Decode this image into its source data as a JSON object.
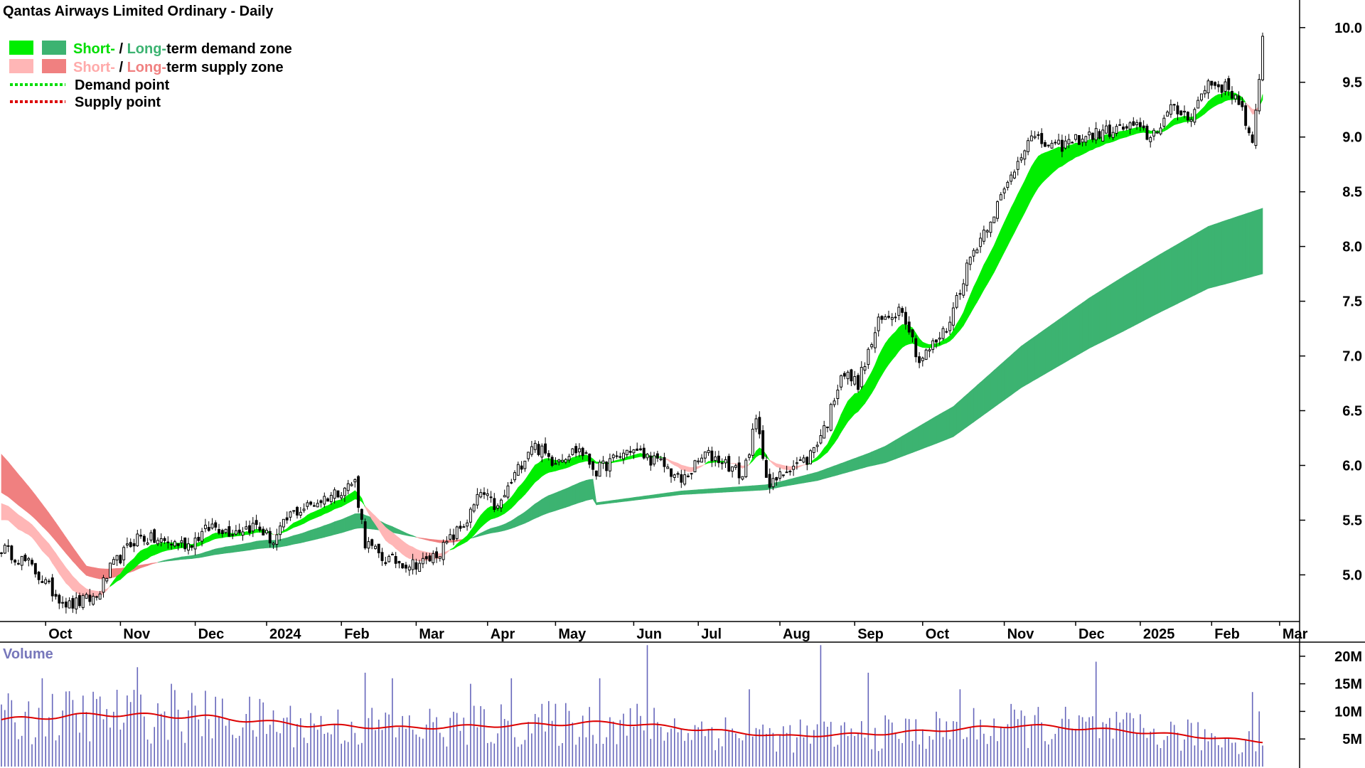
{
  "chart_data": {
    "type": "candlestick",
    "title": "Qantas Airways Limited Ordinary - Daily",
    "legend": {
      "zone_demand": {
        "short": "Short-",
        "sep": " / ",
        "long": "Long-",
        "rest": "term demand zone"
      },
      "zone_supply": {
        "short": "Short-",
        "sep": " / ",
        "long": "Long-",
        "rest": "term supply zone"
      },
      "demand_point": "Demand point",
      "supply_point": "Supply point",
      "placement": "top-left"
    },
    "colors": {
      "short_demand": "#00ee00",
      "long_demand": "#3cb371",
      "short_supply": "#ffb6b6",
      "long_supply": "#f08080",
      "bear_overlap": "#ff6a2a",
      "volume_bar": "#6666bb",
      "volume_avg": "#dd0000",
      "candle": "#000000"
    },
    "x_ticks": [
      "Oct",
      "Nov",
      "Dec",
      "2024",
      "Feb",
      "Mar",
      "Apr",
      "May",
      "Jun",
      "Jul",
      "Aug",
      "Sep",
      "Oct",
      "Nov",
      "Dec",
      "2025",
      "Feb",
      "Mar"
    ],
    "x_tick_pos": [
      13,
      35,
      57,
      78,
      100,
      122,
      143,
      163,
      186,
      205,
      229,
      251,
      271,
      295,
      316,
      335,
      356,
      376
    ],
    "price_axis": {
      "ylim": [
        4.6,
        10.2
      ],
      "ticks": [
        "5.0",
        "5.5",
        "6.0",
        "6.5",
        "7.0",
        "7.5",
        "8.0",
        "8.5",
        "9.0",
        "9.5",
        "10.0"
      ]
    },
    "volume_axis": {
      "title": "Volume",
      "ylim": [
        0,
        21000000
      ],
      "ticks": [
        "5M",
        "10M",
        "15M",
        "20M"
      ]
    },
    "n_days": 372,
    "close_knots": [
      [
        0,
        5.25
      ],
      [
        8,
        5.1
      ],
      [
        15,
        4.85
      ],
      [
        20,
        4.72
      ],
      [
        28,
        4.8
      ],
      [
        32,
        5.05
      ],
      [
        40,
        5.35
      ],
      [
        48,
        5.3
      ],
      [
        55,
        5.28
      ],
      [
        62,
        5.45
      ],
      [
        67,
        5.4
      ],
      [
        75,
        5.45
      ],
      [
        80,
        5.3
      ],
      [
        85,
        5.55
      ],
      [
        95,
        5.7
      ],
      [
        104,
        5.85
      ],
      [
        107,
        5.3
      ],
      [
        112,
        5.15
      ],
      [
        120,
        5.1
      ],
      [
        125,
        5.12
      ],
      [
        130,
        5.25
      ],
      [
        137,
        5.5
      ],
      [
        141,
        5.75
      ],
      [
        146,
        5.6
      ],
      [
        150,
        5.85
      ],
      [
        156,
        6.2
      ],
      [
        162,
        6.05
      ],
      [
        170,
        6.15
      ],
      [
        175,
        5.95
      ],
      [
        185,
        6.15
      ],
      [
        195,
        6.0
      ],
      [
        200,
        5.85
      ],
      [
        207,
        6.1
      ],
      [
        212,
        6.05
      ],
      [
        218,
        5.9
      ],
      [
        222,
        6.4
      ],
      [
        226,
        5.8
      ],
      [
        232,
        6.0
      ],
      [
        237,
        6.05
      ],
      [
        243,
        6.4
      ],
      [
        247,
        6.85
      ],
      [
        252,
        6.75
      ],
      [
        258,
        7.3
      ],
      [
        265,
        7.45
      ],
      [
        270,
        6.95
      ],
      [
        278,
        7.25
      ],
      [
        285,
        7.9
      ],
      [
        295,
        8.5
      ],
      [
        302,
        9.0
      ],
      [
        310,
        8.9
      ],
      [
        318,
        9.0
      ],
      [
        325,
        9.05
      ],
      [
        333,
        9.1
      ],
      [
        338,
        9.0
      ],
      [
        344,
        9.25
      ],
      [
        350,
        9.2
      ],
      [
        355,
        9.5
      ],
      [
        360,
        9.45
      ],
      [
        364,
        9.35
      ],
      [
        368,
        8.9
      ],
      [
        370,
        9.5
      ],
      [
        371,
        9.95
      ]
    ],
    "long_demand_knots": [
      [
        175,
        5.65
      ],
      [
        200,
        5.75
      ],
      [
        225,
        5.8
      ],
      [
        240,
        5.9
      ],
      [
        260,
        6.1
      ],
      [
        280,
        6.4
      ],
      [
        300,
        6.9
      ],
      [
        320,
        7.3
      ],
      [
        340,
        7.65
      ],
      [
        355,
        7.9
      ],
      [
        371,
        8.05
      ]
    ],
    "long_width_knots": [
      [
        175,
        0.02
      ],
      [
        230,
        0.05
      ],
      [
        255,
        0.12
      ],
      [
        275,
        0.25
      ],
      [
        300,
        0.38
      ],
      [
        330,
        0.5
      ],
      [
        360,
        0.58
      ],
      [
        371,
        0.6
      ]
    ],
    "volume_avg_knots": [
      [
        0,
        8500000
      ],
      [
        30,
        9500000
      ],
      [
        60,
        9000000
      ],
      [
        90,
        7500000
      ],
      [
        120,
        7000000
      ],
      [
        150,
        7500000
      ],
      [
        180,
        8000000
      ],
      [
        200,
        7000000
      ],
      [
        230,
        5500000
      ],
      [
        260,
        6000000
      ],
      [
        300,
        7500000
      ],
      [
        330,
        6500000
      ],
      [
        371,
        4500000
      ]
    ],
    "volume_spikes": [
      [
        12,
        16000000
      ],
      [
        40,
        18000000
      ],
      [
        50,
        15000000
      ],
      [
        107,
        17000000
      ],
      [
        115,
        16000000
      ],
      [
        138,
        15000000
      ],
      [
        150,
        16000000
      ],
      [
        176,
        16000000
      ],
      [
        190,
        22000000
      ],
      [
        220,
        14000000
      ],
      [
        241,
        22000000
      ],
      [
        255,
        17000000
      ],
      [
        282,
        14000000
      ],
      [
        322,
        19000000
      ],
      [
        368,
        13500000
      ],
      [
        370,
        10000000
      ]
    ]
  }
}
